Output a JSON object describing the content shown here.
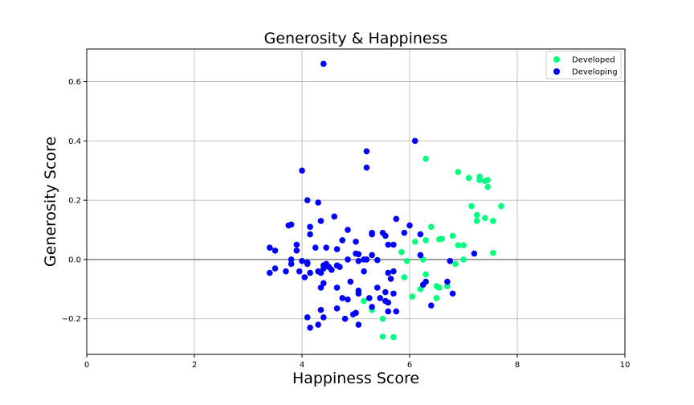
{
  "chart_data": {
    "type": "scatter",
    "title": "Generosity & Happiness",
    "xlabel": "Happiness Score",
    "ylabel": "Generosity Score",
    "xlim": [
      0,
      10
    ],
    "ylim": [
      -0.32,
      0.71
    ],
    "xticks": [
      "0",
      "2",
      "4",
      "6",
      "8",
      "10"
    ],
    "yticks": [
      "−0.2",
      "0.0",
      "0.2",
      "0.4",
      "0.6"
    ],
    "grid": true,
    "legend_position": "top-right",
    "reference_line_y": 0,
    "series": [
      {
        "name": "Developed",
        "color": "#00ff80",
        "points": [
          [
            6.3,
            0.34
          ],
          [
            6.9,
            0.295
          ],
          [
            7.3,
            0.28
          ],
          [
            7.3,
            0.268
          ],
          [
            7.4,
            0.265
          ],
          [
            7.45,
            0.268
          ],
          [
            7.1,
            0.275
          ],
          [
            7.45,
            0.245
          ],
          [
            7.7,
            0.18
          ],
          [
            7.15,
            0.18
          ],
          [
            7.25,
            0.15
          ],
          [
            7.4,
            0.14
          ],
          [
            7.25,
            0.13
          ],
          [
            7.55,
            0.13
          ],
          [
            6.4,
            0.11
          ],
          [
            6.1,
            0.06
          ],
          [
            6.3,
            0.065
          ],
          [
            6.55,
            0.068
          ],
          [
            6.6,
            0.07
          ],
          [
            6.8,
            0.08
          ],
          [
            6.9,
            0.048
          ],
          [
            7.0,
            0.048
          ],
          [
            7.55,
            0.022
          ],
          [
            5.85,
            0.025
          ],
          [
            6.25,
            0.0
          ],
          [
            7.0,
            0.0
          ],
          [
            5.95,
            -0.005
          ],
          [
            6.85,
            -0.015
          ],
          [
            6.3,
            -0.05
          ],
          [
            5.9,
            -0.06
          ],
          [
            6.5,
            -0.09
          ],
          [
            6.55,
            -0.095
          ],
          [
            6.7,
            -0.09
          ],
          [
            6.2,
            -0.1
          ],
          [
            6.05,
            -0.125
          ],
          [
            6.5,
            -0.13
          ],
          [
            5.15,
            -0.14
          ],
          [
            5.3,
            -0.17
          ],
          [
            5.5,
            -0.2
          ],
          [
            5.5,
            -0.26
          ],
          [
            5.7,
            -0.262
          ]
        ]
      },
      {
        "name": "Developing",
        "color": "#0000ff",
        "points": [
          [
            4.4,
            0.66
          ],
          [
            6.1,
            0.4
          ],
          [
            5.2,
            0.365
          ],
          [
            4.0,
            0.3
          ],
          [
            5.2,
            0.31
          ],
          [
            4.1,
            0.2
          ],
          [
            4.3,
            0.192
          ],
          [
            4.6,
            0.145
          ],
          [
            5.75,
            0.137
          ],
          [
            4.35,
            0.13
          ],
          [
            3.8,
            0.118
          ],
          [
            3.75,
            0.115
          ],
          [
            6.0,
            0.115
          ],
          [
            4.15,
            0.11
          ],
          [
            4.85,
            0.1
          ],
          [
            5.3,
            0.09
          ],
          [
            5.3,
            0.085
          ],
          [
            5.5,
            0.09
          ],
          [
            5.9,
            0.09
          ],
          [
            4.15,
            0.085
          ],
          [
            5.55,
            0.08
          ],
          [
            6.2,
            0.085
          ],
          [
            4.75,
            0.065
          ],
          [
            5.0,
            0.06
          ],
          [
            5.6,
            0.05
          ],
          [
            5.7,
            0.05
          ],
          [
            3.9,
            0.05
          ],
          [
            4.25,
            0.04
          ],
          [
            4.45,
            0.04
          ],
          [
            3.4,
            0.04
          ],
          [
            3.5,
            0.03
          ],
          [
            3.9,
            0.03
          ],
          [
            4.65,
            0.035
          ],
          [
            5.0,
            0.02
          ],
          [
            5.05,
            0.018
          ],
          [
            5.3,
            0.015
          ],
          [
            6.2,
            0.015
          ],
          [
            7.2,
            0.02
          ],
          [
            3.8,
            0.0
          ],
          [
            4.0,
            -0.005
          ],
          [
            4.1,
            -0.01
          ],
          [
            4.85,
            0.0
          ],
          [
            5.05,
            -0.005
          ],
          [
            5.15,
            0.0
          ],
          [
            5.2,
            0.0
          ],
          [
            5.4,
            -0.002
          ],
          [
            6.75,
            -0.005
          ],
          [
            3.8,
            -0.015
          ],
          [
            4.1,
            -0.015
          ],
          [
            4.45,
            -0.015
          ],
          [
            4.4,
            -0.02
          ],
          [
            4.5,
            -0.025
          ],
          [
            4.65,
            -0.02
          ],
          [
            4.7,
            -0.025
          ],
          [
            3.5,
            -0.03
          ],
          [
            4.4,
            -0.03
          ],
          [
            4.55,
            -0.035
          ],
          [
            4.3,
            -0.04
          ],
          [
            3.7,
            -0.04
          ],
          [
            3.95,
            -0.04
          ],
          [
            5.15,
            -0.04
          ],
          [
            5.6,
            -0.045
          ],
          [
            5.7,
            -0.04
          ],
          [
            3.4,
            -0.045
          ],
          [
            4.15,
            -0.045
          ],
          [
            4.35,
            -0.045
          ],
          [
            4.05,
            -0.06
          ],
          [
            5.65,
            -0.065
          ],
          [
            4.4,
            -0.08
          ],
          [
            4.9,
            -0.075
          ],
          [
            6.3,
            -0.075
          ],
          [
            6.25,
            -0.085
          ],
          [
            6.7,
            -0.075
          ],
          [
            4.35,
            -0.095
          ],
          [
            4.65,
            -0.095
          ],
          [
            5.4,
            -0.095
          ],
          [
            5.05,
            -0.105
          ],
          [
            5.05,
            -0.115
          ],
          [
            5.55,
            -0.11
          ],
          [
            5.7,
            -0.115
          ],
          [
            6.8,
            -0.115
          ],
          [
            4.75,
            -0.13
          ],
          [
            4.85,
            -0.135
          ],
          [
            5.25,
            -0.13
          ],
          [
            5.45,
            -0.13
          ],
          [
            5.55,
            -0.14
          ],
          [
            5.6,
            -0.145
          ],
          [
            6.4,
            -0.155
          ],
          [
            5.3,
            -0.16
          ],
          [
            4.35,
            -0.17
          ],
          [
            4.65,
            -0.165
          ],
          [
            5.6,
            -0.175
          ],
          [
            5.75,
            -0.175
          ],
          [
            5.0,
            -0.18
          ],
          [
            4.95,
            -0.185
          ],
          [
            4.1,
            -0.195
          ],
          [
            4.4,
            -0.195
          ],
          [
            4.8,
            -0.2
          ],
          [
            4.3,
            -0.22
          ],
          [
            5.05,
            -0.22
          ],
          [
            4.15,
            -0.23
          ]
        ]
      }
    ]
  }
}
